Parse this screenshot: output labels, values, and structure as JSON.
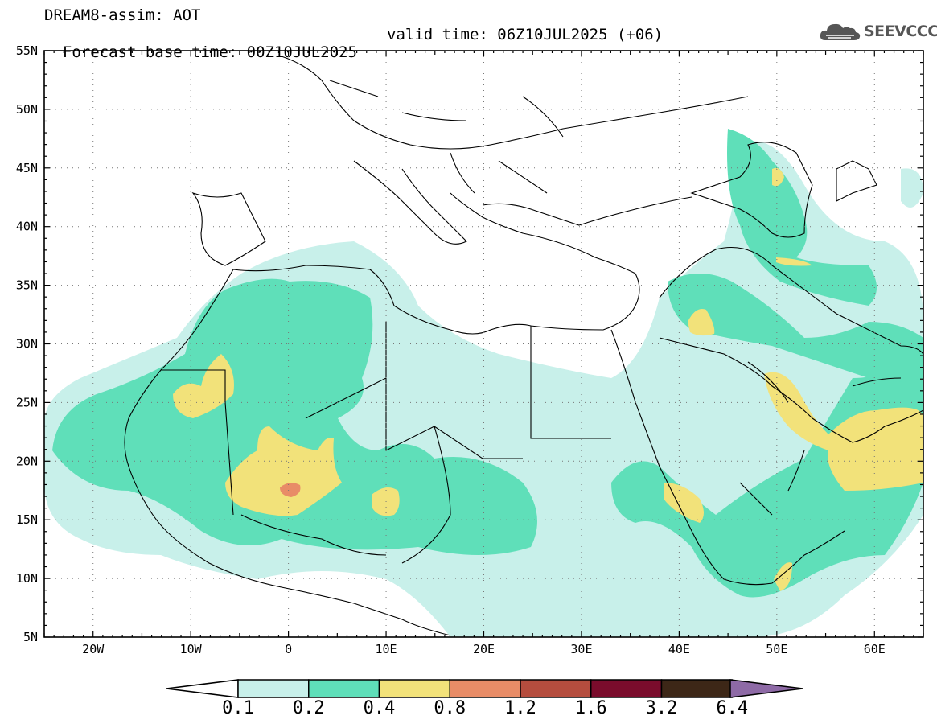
{
  "header": {
    "model_line": "DREAM8-assim: AOT",
    "base_time": "Forecast base time: 00Z10JUL2025",
    "valid_time": "valid time: 06Z10JUL2025 (+06)"
  },
  "logo": {
    "text": "SEEVCCC",
    "icon": "cloud-logo-icon"
  },
  "axes": {
    "lat_labels": [
      "55N",
      "50N",
      "45N",
      "40N",
      "35N",
      "30N",
      "25N",
      "20N",
      "15N",
      "10N",
      "5N"
    ],
    "lon_labels": [
      "20W",
      "10W",
      "0",
      "10E",
      "20E",
      "30E",
      "40E",
      "50E",
      "60E"
    ],
    "lat_range": [
      5,
      55
    ],
    "lon_range": [
      -25,
      65
    ]
  },
  "colorbar": {
    "levels": [
      "0.1",
      "0.2",
      "0.4",
      "0.8",
      "1.2",
      "1.6",
      "3.2",
      "6.4"
    ],
    "colors": [
      "#c8f0ea",
      "#5fdfb9",
      "#f2e27a",
      "#e88c67",
      "#b54d3e",
      "#7a0c2c",
      "#3d2717",
      "#8e6aa6"
    ],
    "underflow_color": "#ffffff"
  }
}
